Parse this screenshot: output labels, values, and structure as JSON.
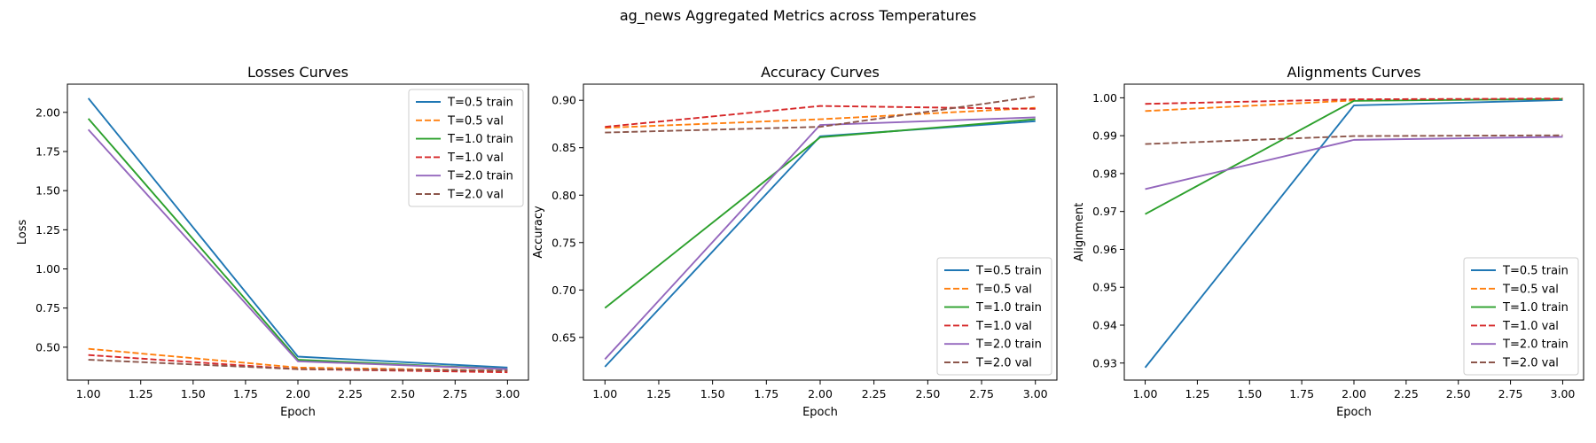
{
  "figure": {
    "suptitle": "ag_news Aggregated Metrics across Temperatures"
  },
  "series_styles": [
    {
      "name": "T=0.5 train",
      "color": "#1f77b4",
      "dashed": false
    },
    {
      "name": "T=0.5 val",
      "color": "#ff7f0e",
      "dashed": true
    },
    {
      "name": "T=1.0 train",
      "color": "#2ca02c",
      "dashed": false
    },
    {
      "name": "T=1.0 val",
      "color": "#d62728",
      "dashed": true
    },
    {
      "name": "T=2.0 train",
      "color": "#9467bd",
      "dashed": false
    },
    {
      "name": "T=2.0 val",
      "color": "#8c564b",
      "dashed": true
    }
  ],
  "chart_data": [
    {
      "type": "line",
      "title": "Losses Curves",
      "xlabel": "Epoch",
      "ylabel": "Loss",
      "x": [
        1,
        2,
        3
      ],
      "xlim": [
        0.9,
        3.1
      ],
      "ylim": [
        0.29,
        2.18
      ],
      "xticks": [
        1.0,
        1.25,
        1.5,
        1.75,
        2.0,
        2.25,
        2.5,
        2.75,
        3.0
      ],
      "xtick_labels": [
        "1.00",
        "1.25",
        "1.50",
        "1.75",
        "2.00",
        "2.25",
        "2.50",
        "2.75",
        "3.00"
      ],
      "yticks": [
        0.5,
        0.75,
        1.0,
        1.25,
        1.5,
        1.75,
        2.0
      ],
      "ytick_labels": [
        "0.50",
        "0.75",
        "1.00",
        "1.25",
        "1.50",
        "1.75",
        "2.00"
      ],
      "legend_position": "upper right",
      "grid": false,
      "series": [
        {
          "name": "T=0.5 train",
          "values": [
            2.09,
            0.44,
            0.37
          ]
        },
        {
          "name": "T=0.5 val",
          "values": [
            0.49,
            0.37,
            0.35
          ]
        },
        {
          "name": "T=1.0 train",
          "values": [
            1.96,
            0.42,
            0.36
          ]
        },
        {
          "name": "T=1.0 val",
          "values": [
            0.45,
            0.36,
            0.34
          ]
        },
        {
          "name": "T=2.0 train",
          "values": [
            1.89,
            0.41,
            0.36
          ]
        },
        {
          "name": "T=2.0 val",
          "values": [
            0.42,
            0.36,
            0.35
          ]
        }
      ]
    },
    {
      "type": "line",
      "title": "Accuracy Curves",
      "xlabel": "Epoch",
      "ylabel": "Accuracy",
      "x": [
        1,
        2,
        3
      ],
      "xlim": [
        0.9,
        3.1
      ],
      "ylim": [
        0.605,
        0.917
      ],
      "xticks": [
        1.0,
        1.25,
        1.5,
        1.75,
        2.0,
        2.25,
        2.5,
        2.75,
        3.0
      ],
      "xtick_labels": [
        "1.00",
        "1.25",
        "1.50",
        "1.75",
        "2.00",
        "2.25",
        "2.50",
        "2.75",
        "3.00"
      ],
      "yticks": [
        0.65,
        0.7,
        0.75,
        0.8,
        0.85,
        0.9
      ],
      "ytick_labels": [
        "0.65",
        "0.70",
        "0.75",
        "0.80",
        "0.85",
        "0.90"
      ],
      "legend_position": "lower right",
      "grid": false,
      "series": [
        {
          "name": "T=0.5 train",
          "values": [
            0.619,
            0.862,
            0.878
          ]
        },
        {
          "name": "T=0.5 val",
          "values": [
            0.871,
            0.88,
            0.892
          ]
        },
        {
          "name": "T=1.0 train",
          "values": [
            0.681,
            0.861,
            0.88
          ]
        },
        {
          "name": "T=1.0 val",
          "values": [
            0.872,
            0.894,
            0.891
          ]
        },
        {
          "name": "T=2.0 train",
          "values": [
            0.627,
            0.874,
            0.882
          ]
        },
        {
          "name": "T=2.0 val",
          "values": [
            0.866,
            0.872,
            0.904
          ]
        }
      ]
    },
    {
      "type": "line",
      "title": "Alignments Curves",
      "xlabel": "Epoch",
      "ylabel": "Alignment",
      "x": [
        1,
        2,
        3
      ],
      "xlim": [
        0.9,
        3.1
      ],
      "ylim": [
        0.9255,
        1.0036
      ],
      "xticks": [
        1.0,
        1.25,
        1.5,
        1.75,
        2.0,
        2.25,
        2.5,
        2.75,
        3.0
      ],
      "xtick_labels": [
        "1.00",
        "1.25",
        "1.50",
        "1.75",
        "2.00",
        "2.25",
        "2.50",
        "2.75",
        "3.00"
      ],
      "yticks": [
        0.93,
        0.94,
        0.95,
        0.96,
        0.97,
        0.98,
        0.99,
        1.0
      ],
      "ytick_labels": [
        "0.93",
        "0.94",
        "0.95",
        "0.96",
        "0.97",
        "0.98",
        "0.99",
        "1.00"
      ],
      "legend_position": "lower right",
      "grid": false,
      "series": [
        {
          "name": "T=0.5 train",
          "values": [
            0.9288,
            0.998,
            0.9994
          ]
        },
        {
          "name": "T=0.5 val",
          "values": [
            0.9965,
            0.9993,
            0.9997
          ]
        },
        {
          "name": "T=1.0 train",
          "values": [
            0.9693,
            0.9992,
            0.9997
          ]
        },
        {
          "name": "T=1.0 val",
          "values": [
            0.9984,
            0.9996,
            0.9998
          ]
        },
        {
          "name": "T=2.0 train",
          "values": [
            0.9759,
            0.9889,
            0.9897
          ]
        },
        {
          "name": "T=2.0 val",
          "values": [
            0.9878,
            0.9899,
            0.9901
          ]
        }
      ]
    }
  ]
}
